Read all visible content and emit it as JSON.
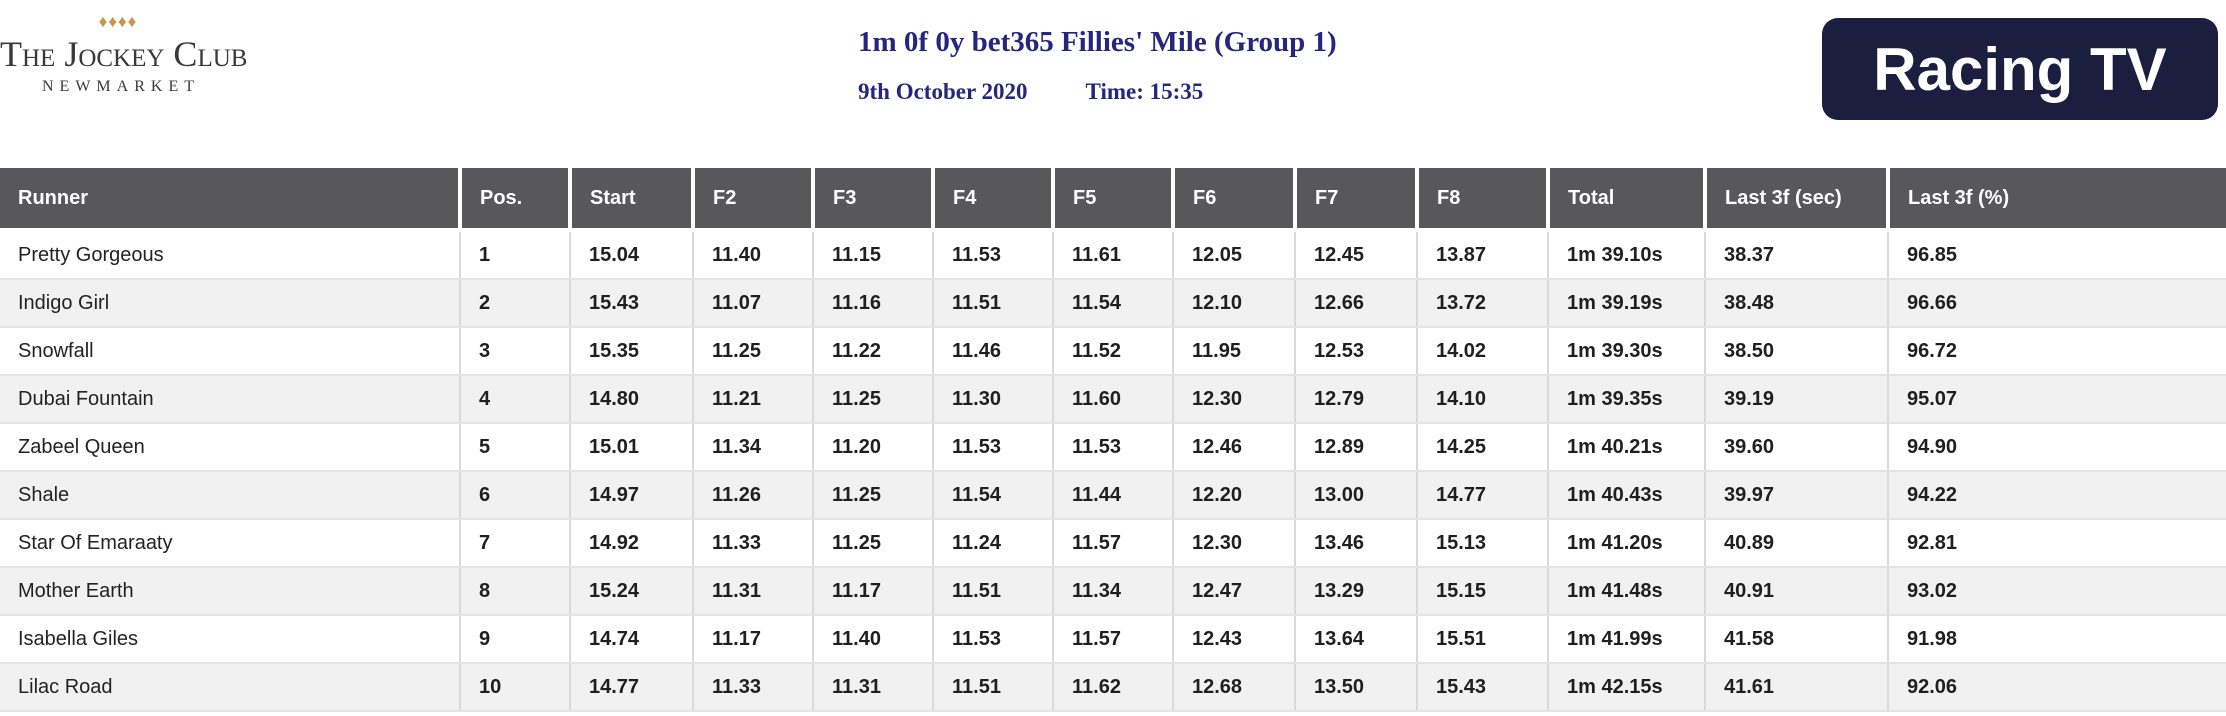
{
  "branding": {
    "jockey_club": {
      "diamonds": "♦♦♦♦",
      "name": "The Jockey Club",
      "location": "NEWMARKET",
      "gold": "#c6964a",
      "text_color": "#39393b"
    },
    "racing_tv": {
      "label": "Racing TV",
      "background": "#1b1e3e"
    }
  },
  "race": {
    "title": "1m 0f 0y bet365 Fillies' Mile (Group 1)",
    "date": "9th October 2020",
    "time": "Time: 15:35",
    "title_color": "#26267e"
  },
  "table": {
    "header_bg": "#58585a",
    "alt_row_bg": "#f1f1f1",
    "columns": [
      "Runner",
      "Pos.",
      "Start",
      "F2",
      "F3",
      "F4",
      "F5",
      "F6",
      "F7",
      "F8",
      "Total",
      "Last 3f (sec)",
      "Last 3f (%)"
    ],
    "rows": [
      {
        "runner": "Pretty Gorgeous",
        "pos": "1",
        "start": "15.04",
        "f2": "11.40",
        "f3": "11.15",
        "f4": "11.53",
        "f5": "11.61",
        "f6": "12.05",
        "f7": "12.45",
        "f8": "13.87",
        "total": "1m 39.10s",
        "last3f_sec": "38.37",
        "last3f_pct": "96.85"
      },
      {
        "runner": "Indigo Girl",
        "pos": "2",
        "start": "15.43",
        "f2": "11.07",
        "f3": "11.16",
        "f4": "11.51",
        "f5": "11.54",
        "f6": "12.10",
        "f7": "12.66",
        "f8": "13.72",
        "total": "1m 39.19s",
        "last3f_sec": "38.48",
        "last3f_pct": "96.66"
      },
      {
        "runner": "Snowfall",
        "pos": "3",
        "start": "15.35",
        "f2": "11.25",
        "f3": "11.22",
        "f4": "11.46",
        "f5": "11.52",
        "f6": "11.95",
        "f7": "12.53",
        "f8": "14.02",
        "total": "1m 39.30s",
        "last3f_sec": "38.50",
        "last3f_pct": "96.72"
      },
      {
        "runner": "Dubai Fountain",
        "pos": "4",
        "start": "14.80",
        "f2": "11.21",
        "f3": "11.25",
        "f4": "11.30",
        "f5": "11.60",
        "f6": "12.30",
        "f7": "12.79",
        "f8": "14.10",
        "total": "1m 39.35s",
        "last3f_sec": "39.19",
        "last3f_pct": "95.07"
      },
      {
        "runner": "Zabeel Queen",
        "pos": "5",
        "start": "15.01",
        "f2": "11.34",
        "f3": "11.20",
        "f4": "11.53",
        "f5": "11.53",
        "f6": "12.46",
        "f7": "12.89",
        "f8": "14.25",
        "total": "1m 40.21s",
        "last3f_sec": "39.60",
        "last3f_pct": "94.90"
      },
      {
        "runner": "Shale",
        "pos": "6",
        "start": "14.97",
        "f2": "11.26",
        "f3": "11.25",
        "f4": "11.54",
        "f5": "11.44",
        "f6": "12.20",
        "f7": "13.00",
        "f8": "14.77",
        "total": "1m 40.43s",
        "last3f_sec": "39.97",
        "last3f_pct": "94.22"
      },
      {
        "runner": "Star Of Emaraaty",
        "pos": "7",
        "start": "14.92",
        "f2": "11.33",
        "f3": "11.25",
        "f4": "11.24",
        "f5": "11.57",
        "f6": "12.30",
        "f7": "13.46",
        "f8": "15.13",
        "total": "1m 41.20s",
        "last3f_sec": "40.89",
        "last3f_pct": "92.81"
      },
      {
        "runner": "Mother Earth",
        "pos": "8",
        "start": "15.24",
        "f2": "11.31",
        "f3": "11.17",
        "f4": "11.51",
        "f5": "11.34",
        "f6": "12.47",
        "f7": "13.29",
        "f8": "15.15",
        "total": "1m 41.48s",
        "last3f_sec": "40.91",
        "last3f_pct": "93.02"
      },
      {
        "runner": "Isabella Giles",
        "pos": "9",
        "start": "14.74",
        "f2": "11.17",
        "f3": "11.40",
        "f4": "11.53",
        "f5": "11.57",
        "f6": "12.43",
        "f7": "13.64",
        "f8": "15.51",
        "total": "1m 41.99s",
        "last3f_sec": "41.58",
        "last3f_pct": "91.98"
      },
      {
        "runner": "Lilac Road",
        "pos": "10",
        "start": "14.77",
        "f2": "11.33",
        "f3": "11.31",
        "f4": "11.51",
        "f5": "11.62",
        "f6": "12.68",
        "f7": "13.50",
        "f8": "15.43",
        "total": "1m 42.15s",
        "last3f_sec": "41.61",
        "last3f_pct": "92.06"
      }
    ]
  }
}
